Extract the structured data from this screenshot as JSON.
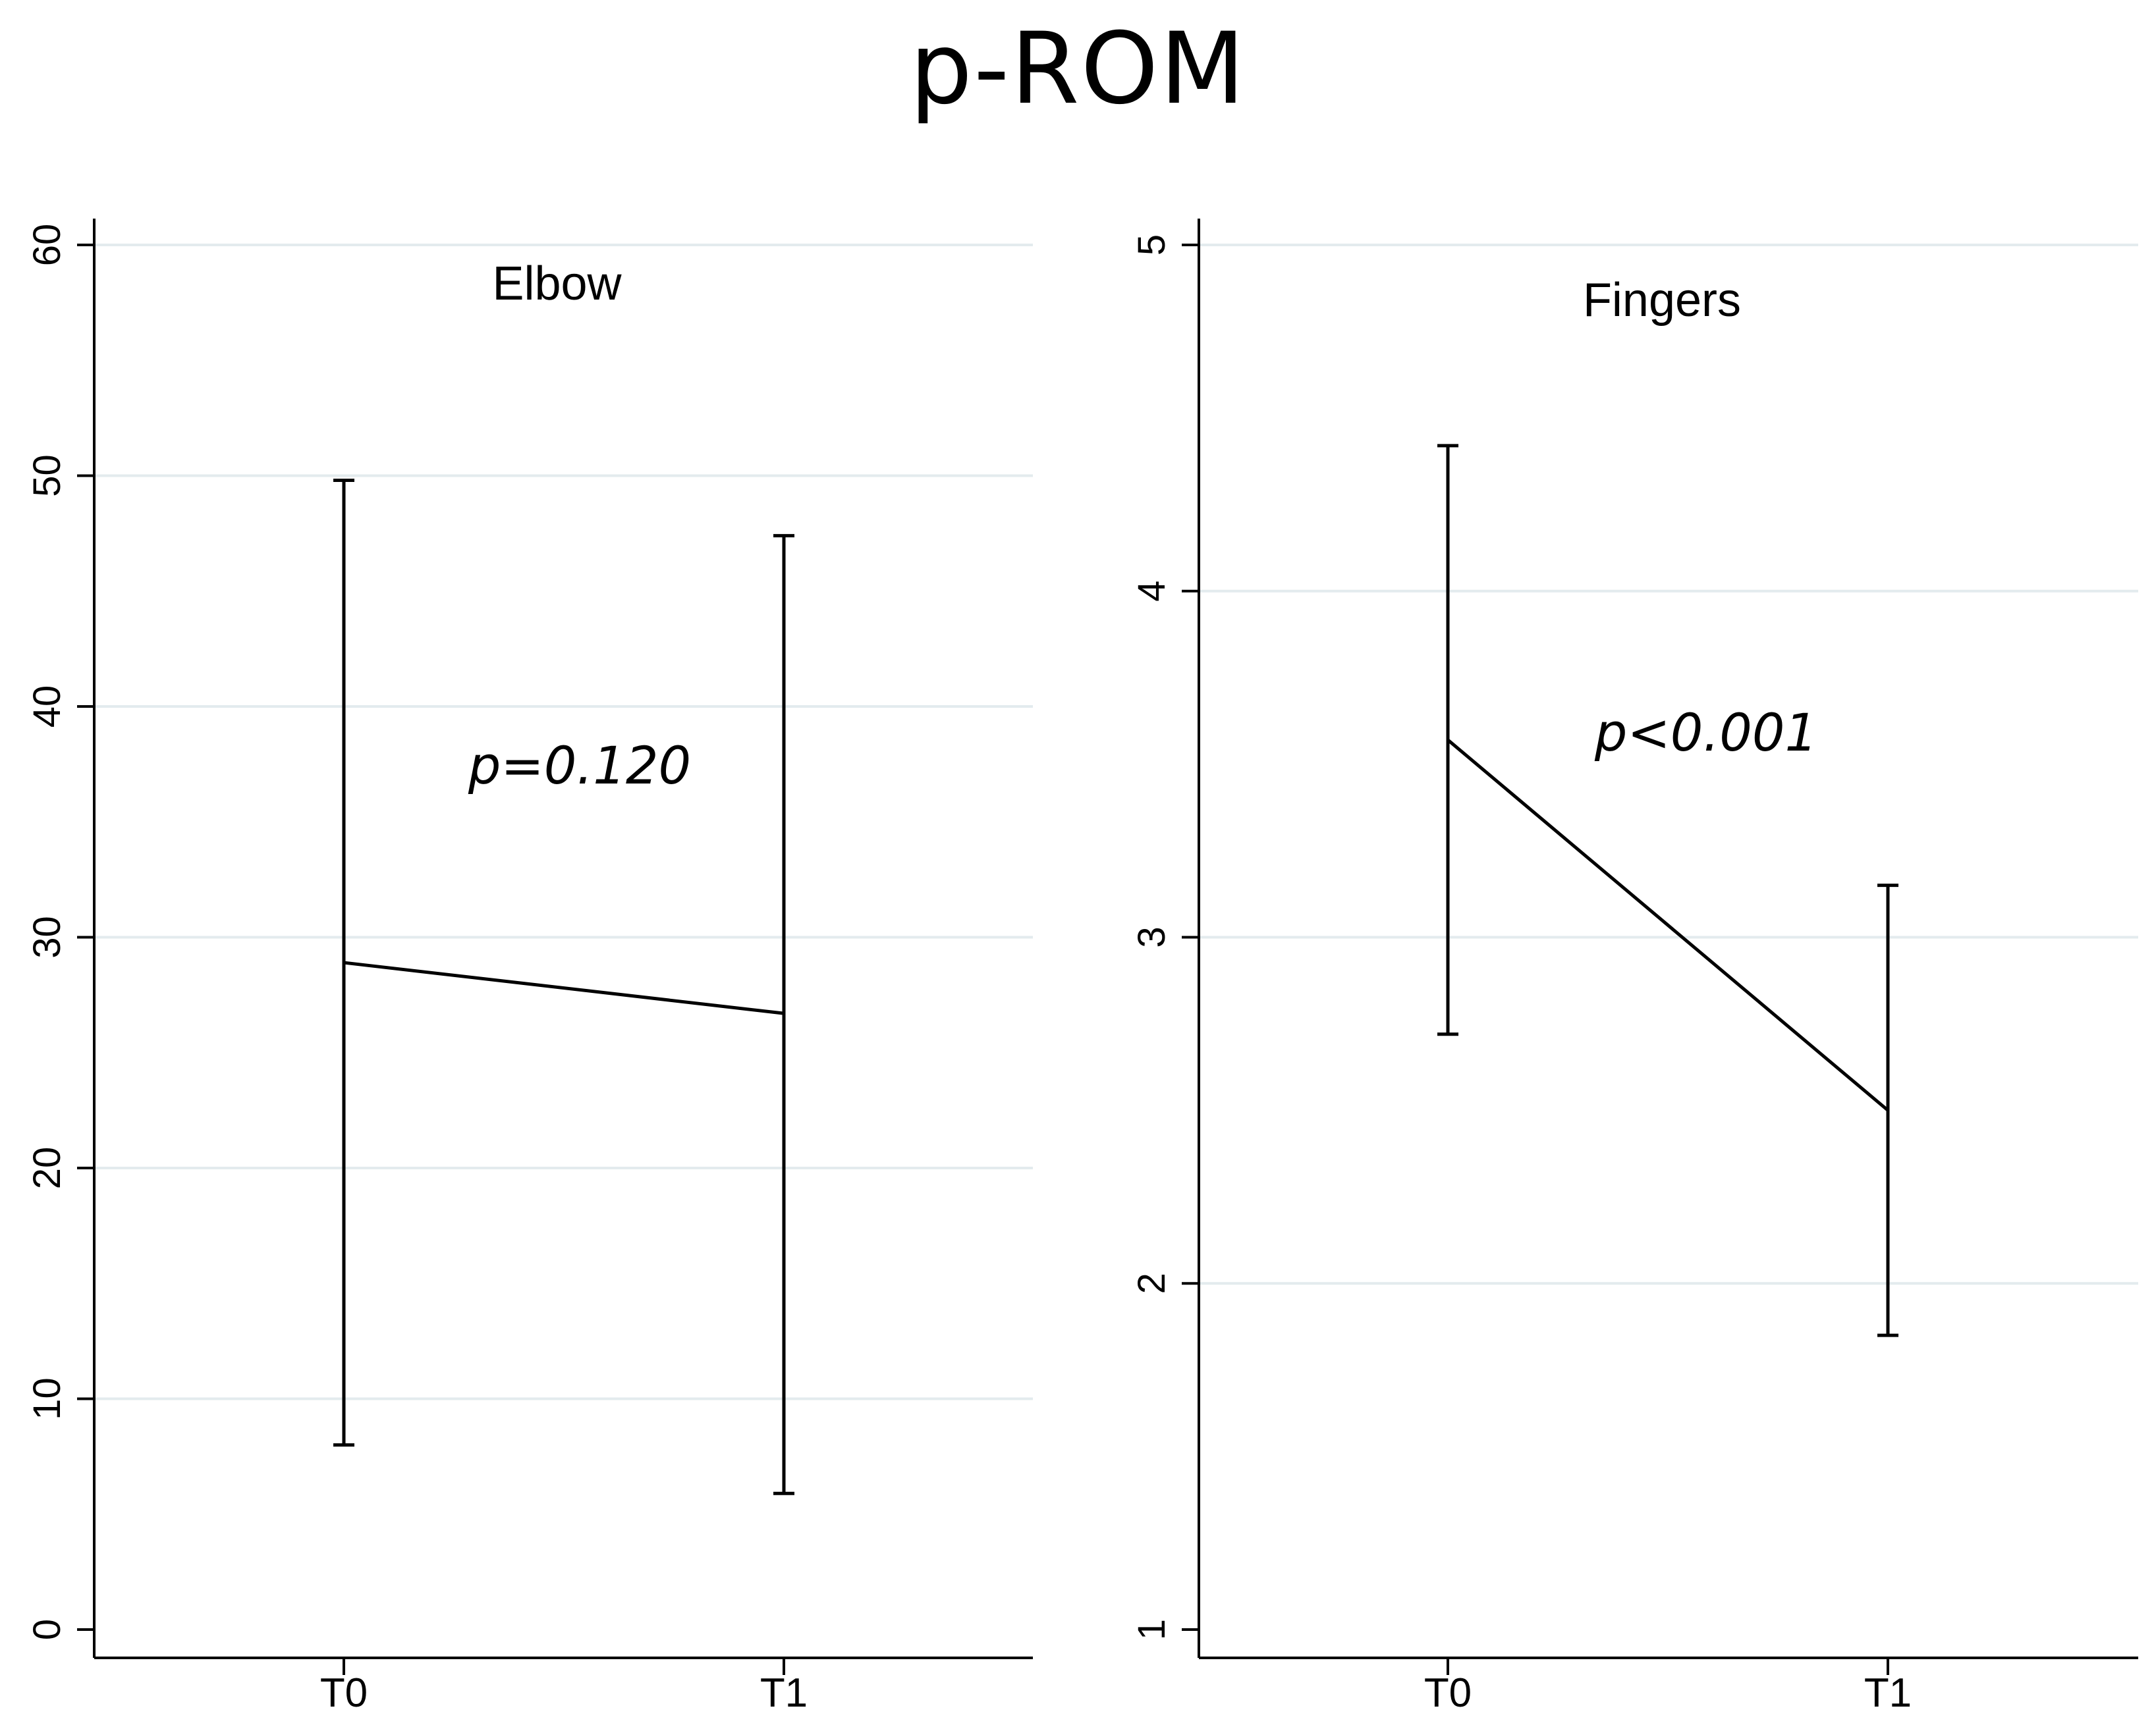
{
  "figure_title": "p-ROM",
  "chart_data": [
    {
      "type": "line",
      "title": "Elbow",
      "annotation": "p=0.120",
      "categories": [
        "T0",
        "T1"
      ],
      "series": [
        {
          "values": [
            28.9,
            26.7
          ],
          "error_low": [
            8.0,
            5.9
          ],
          "error_high": [
            49.8,
            47.4
          ]
        }
      ],
      "ylim": [
        0,
        60
      ],
      "yticks": [
        0,
        10,
        20,
        30,
        40,
        50,
        60
      ],
      "ytick_labels": [
        "0",
        "10",
        "20",
        "30",
        "40",
        "50",
        "60"
      ],
      "grid": true,
      "line_color": "#000000",
      "grid_color": "#e3ebee"
    },
    {
      "type": "line",
      "title": "Fingers",
      "annotation": "p<0.001",
      "categories": [
        "T0",
        "T1"
      ],
      "series": [
        {
          "values": [
            3.57,
            2.5
          ],
          "error_low": [
            2.72,
            1.85
          ],
          "error_high": [
            4.42,
            3.15
          ]
        }
      ],
      "ylim": [
        1,
        5
      ],
      "yticks": [
        1,
        2,
        3,
        4,
        5
      ],
      "ytick_labels": [
        "1",
        "2",
        "3",
        "4",
        "5"
      ],
      "grid": true,
      "line_color": "#000000",
      "grid_color": "#e3ebee"
    }
  ]
}
